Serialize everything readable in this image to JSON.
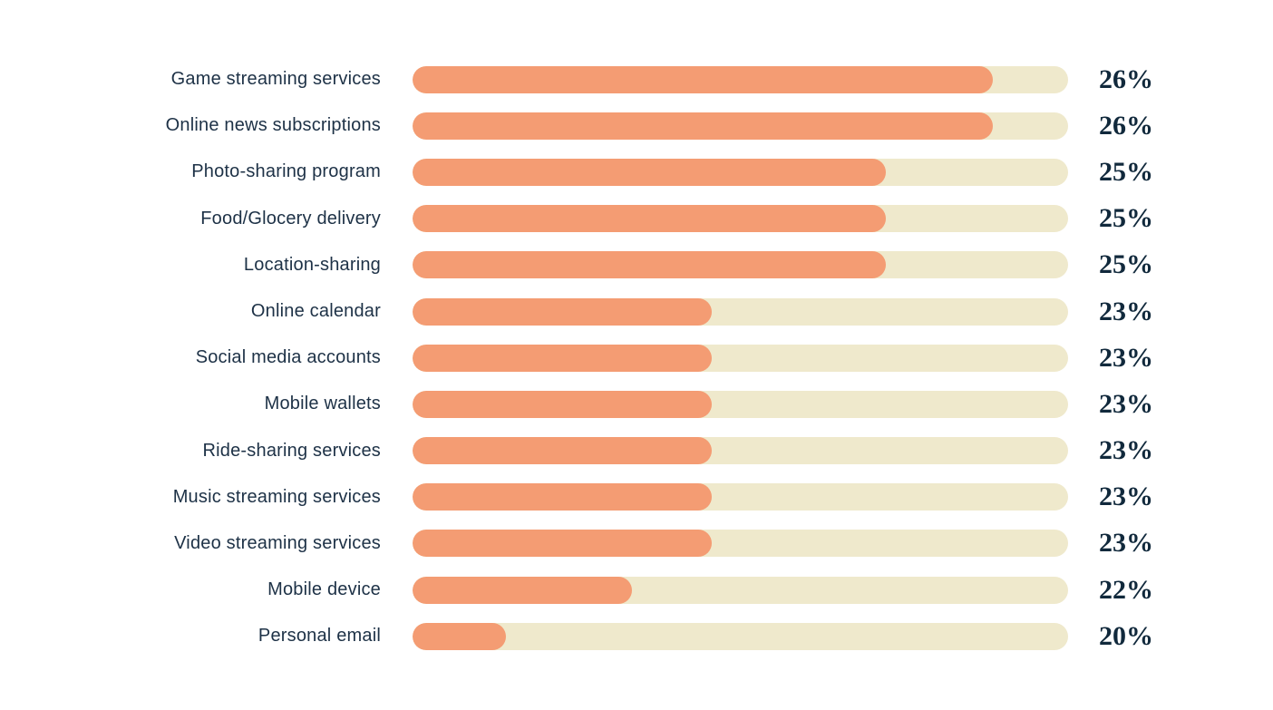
{
  "colors": {
    "background": "#ffffff",
    "bar_fill": "#f49c73",
    "bar_track": "#efe9cc",
    "label_text": "#1d3146",
    "value_text": "#11293c"
  },
  "chart_data": {
    "type": "bar",
    "orientation": "horizontal",
    "title": "",
    "xlabel": "",
    "ylabel": "",
    "unit": "%",
    "grid": false,
    "legend": false,
    "value_label_position": "right-of-bar",
    "categories": [
      "Game streaming services",
      "Online news subscriptions",
      "Photo-sharing program",
      "Food/Glocery delivery",
      "Location-sharing",
      "Online calendar",
      "Social media accounts",
      "Mobile wallets",
      "Ride-sharing services",
      "Music streaming services",
      "Video streaming services",
      "Mobile device",
      "Personal email"
    ],
    "values": [
      26,
      26,
      25,
      25,
      25,
      23,
      23,
      23,
      23,
      23,
      23,
      22,
      20
    ],
    "rows": [
      {
        "label": "Game streaming services",
        "value": 26,
        "value_label": "26%",
        "fill_pct": 88.5
      },
      {
        "label": "Online news subscriptions",
        "value": 26,
        "value_label": "26%",
        "fill_pct": 88.5
      },
      {
        "label": "Photo-sharing program",
        "value": 25,
        "value_label": "25%",
        "fill_pct": 72.2
      },
      {
        "label": "Food/Glocery delivery",
        "value": 25,
        "value_label": "25%",
        "fill_pct": 72.2
      },
      {
        "label": "Location-sharing",
        "value": 25,
        "value_label": "25%",
        "fill_pct": 72.2
      },
      {
        "label": "Online calendar",
        "value": 23,
        "value_label": "23%",
        "fill_pct": 45.6
      },
      {
        "label": "Social media accounts",
        "value": 23,
        "value_label": "23%",
        "fill_pct": 45.6
      },
      {
        "label": "Mobile wallets",
        "value": 23,
        "value_label": "23%",
        "fill_pct": 45.6
      },
      {
        "label": "Ride-sharing services",
        "value": 23,
        "value_label": "23%",
        "fill_pct": 45.6
      },
      {
        "label": "Music streaming services",
        "value": 23,
        "value_label": "23%",
        "fill_pct": 45.6
      },
      {
        "label": "Video streaming services",
        "value": 23,
        "value_label": "23%",
        "fill_pct": 45.6
      },
      {
        "label": "Mobile device",
        "value": 22,
        "value_label": "22%",
        "fill_pct": 33.5
      },
      {
        "label": "Personal email",
        "value": 20,
        "value_label": "20%",
        "fill_pct": 14.2
      }
    ]
  }
}
